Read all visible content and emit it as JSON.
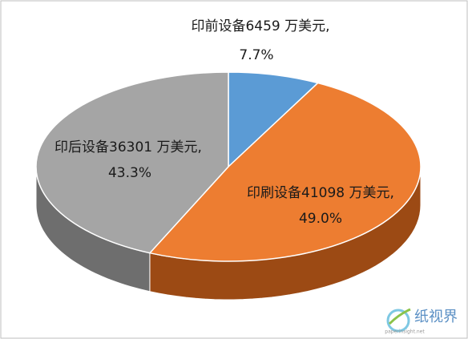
{
  "chart_data": {
    "type": "pie3d",
    "labels": [
      "印前设备6459 万美元,",
      "印刷设备41098 万美元,",
      "印后设备36301 万美元,"
    ],
    "values": [
      7.7,
      49.0,
      43.3
    ],
    "value_labels": [
      "7.7%",
      "49.0%",
      "43.3%"
    ],
    "colors": [
      "#5b9bd5",
      "#ed7d31",
      "#a5a5a5"
    ],
    "side_colors": [
      "#3a6f9e",
      "#9c4a14",
      "#6e6e6e"
    ]
  },
  "watermark": {
    "title": "纸视界",
    "url": "paperinsight.net"
  }
}
